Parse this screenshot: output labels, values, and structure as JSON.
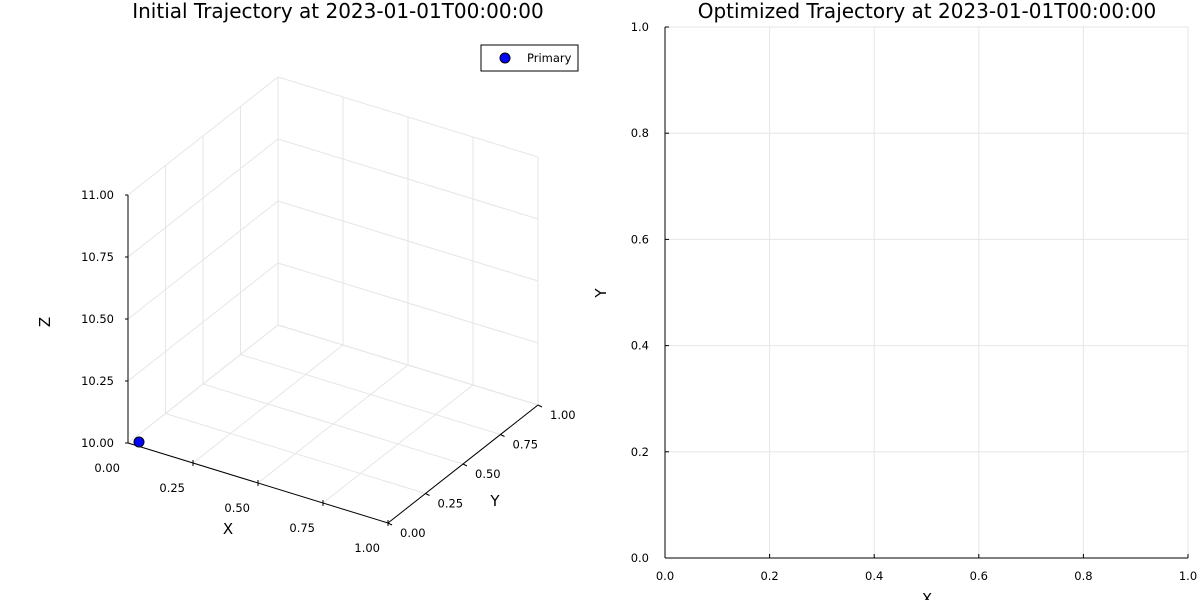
{
  "chart_data": [
    {
      "type": "scatter",
      "projection": "3d",
      "title": "Initial Trajectory at 2023-01-01T00:00:00",
      "xlabel": "X",
      "ylabel": "Y",
      "zlabel": "Z",
      "xlim": [
        0,
        1
      ],
      "ylim": [
        0,
        1
      ],
      "zlim": [
        10,
        11
      ],
      "x_ticks": [
        "0.00",
        "0.25",
        "0.50",
        "0.75",
        "1.00"
      ],
      "y_ticks": [
        "0.00",
        "0.25",
        "0.50",
        "0.75",
        "1.00"
      ],
      "z_ticks": [
        "10.00",
        "10.25",
        "10.50",
        "10.75",
        "11.00"
      ],
      "grid": true,
      "legend": {
        "position": "top-right",
        "entries": [
          "Primary"
        ]
      },
      "series": [
        {
          "name": "Primary",
          "color": "#0000ff",
          "points": [
            {
              "x": 0,
              "y": 0,
              "z": 10
            }
          ]
        }
      ]
    },
    {
      "type": "line",
      "title": "Optimized Trajectory at 2023-01-01T00:00:00",
      "xlabel": "X",
      "ylabel": "Y",
      "xlim": [
        0,
        1
      ],
      "ylim": [
        0,
        1
      ],
      "x_ticks": [
        "0.0",
        "0.2",
        "0.4",
        "0.6",
        "0.8",
        "1.0"
      ],
      "y_ticks": [
        "0.0",
        "0.2",
        "0.4",
        "0.6",
        "0.8",
        "1.0"
      ],
      "grid": true,
      "series": []
    }
  ]
}
